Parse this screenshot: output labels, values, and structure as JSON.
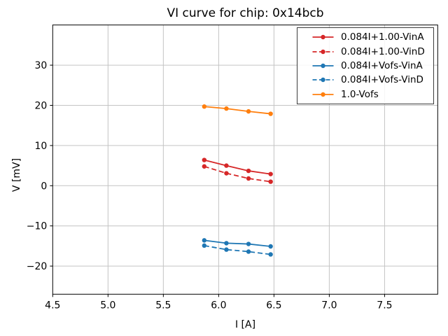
{
  "chart_data": {
    "type": "line",
    "title": "VI curve for chip: 0x14bcb",
    "xlabel": "I [A]",
    "ylabel": "V [mV]",
    "xlim": [
      4.5,
      7.98
    ],
    "ylim": [
      -27,
      40
    ],
    "grid": true,
    "legend_position": "upper right",
    "x_ticks": [
      4.5,
      5.0,
      5.5,
      6.0,
      6.5,
      7.0,
      7.5
    ],
    "x_tick_labels": [
      "4.5",
      "5.0",
      "5.5",
      "6.0",
      "6.5",
      "7.0",
      "7.5"
    ],
    "y_ticks": [
      -20,
      -10,
      0,
      10,
      20,
      30
    ],
    "y_tick_labels": [
      "−20",
      "−10",
      "0",
      "10",
      "20",
      "30"
    ],
    "x": [
      5.87,
      6.07,
      6.27,
      6.47
    ],
    "series": [
      {
        "name": "0.084I+1.00-VinA",
        "color": "#d62728",
        "style": "solid",
        "marker": "circle",
        "values": [
          6.4,
          5.0,
          3.7,
          2.9
        ]
      },
      {
        "name": "0.084I+1.00-VinD",
        "color": "#d62728",
        "style": "dashed",
        "marker": "circle",
        "values": [
          4.8,
          3.1,
          1.8,
          1.0
        ]
      },
      {
        "name": "0.084I+Vofs-VinA",
        "color": "#1f77b4",
        "style": "solid",
        "marker": "circle",
        "values": [
          -13.6,
          -14.3,
          -14.5,
          -15.1
        ]
      },
      {
        "name": "0.084I+Vofs-VinD",
        "color": "#1f77b4",
        "style": "dashed",
        "marker": "circle",
        "values": [
          -14.9,
          -15.9,
          -16.4,
          -17.1
        ]
      },
      {
        "name": "1.0-Vofs",
        "color": "#ff7f0e",
        "style": "solid",
        "marker": "circle",
        "values": [
          19.7,
          19.2,
          18.5,
          17.9
        ]
      }
    ],
    "colors": {
      "grid": "#c4c4c4",
      "spine": "#000000",
      "legend_border": "#3c3c3c",
      "background": "#ffffff"
    }
  }
}
